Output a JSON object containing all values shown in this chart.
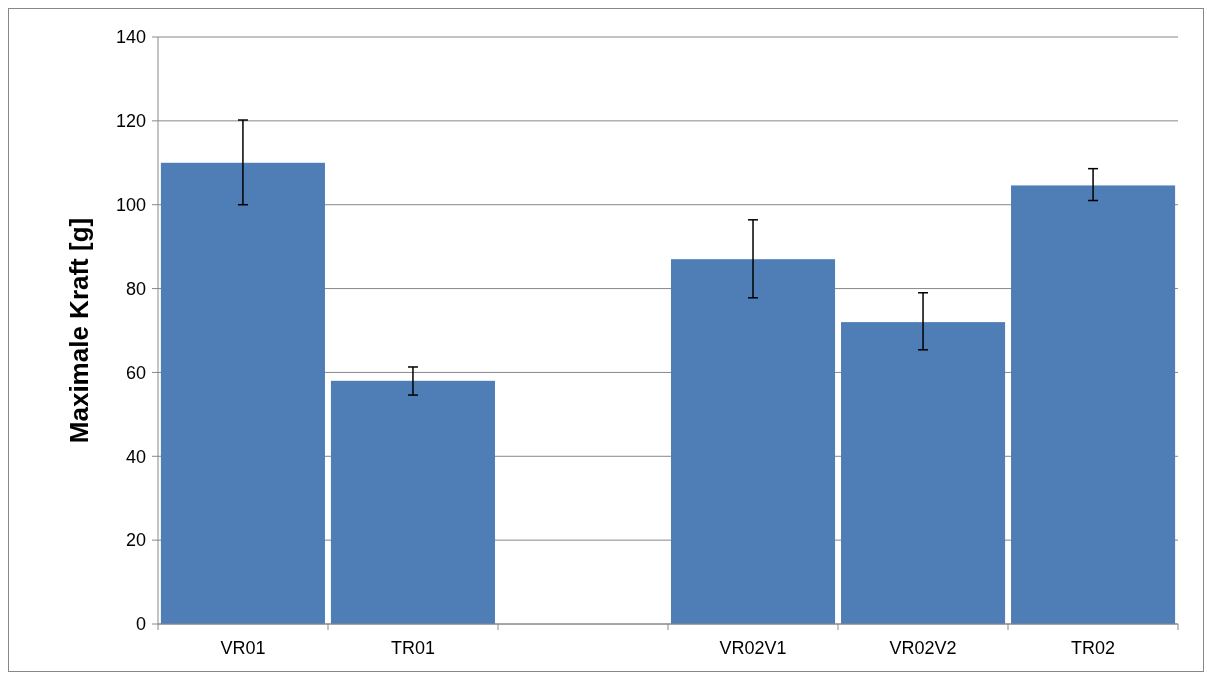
{
  "chart_data": {
    "type": "bar",
    "ylabel": "Maximale Kraft  [g]",
    "categories": [
      "VR01",
      "TR01",
      null,
      "VR02V1",
      "VR02V2",
      "TR02"
    ],
    "values": [
      110,
      58,
      null,
      87,
      72,
      104.6
    ],
    "errors": [
      [
        100,
        120.2
      ],
      [
        54.6,
        61.3
      ],
      null,
      [
        77.8,
        96.4
      ],
      [
        65.4,
        79
      ],
      [
        101,
        108.6
      ]
    ],
    "color": "#4f7db5",
    "ylim": [
      0,
      140
    ],
    "yticks": [
      0,
      20,
      40,
      60,
      80,
      100,
      120,
      140
    ],
    "grid": "y"
  }
}
